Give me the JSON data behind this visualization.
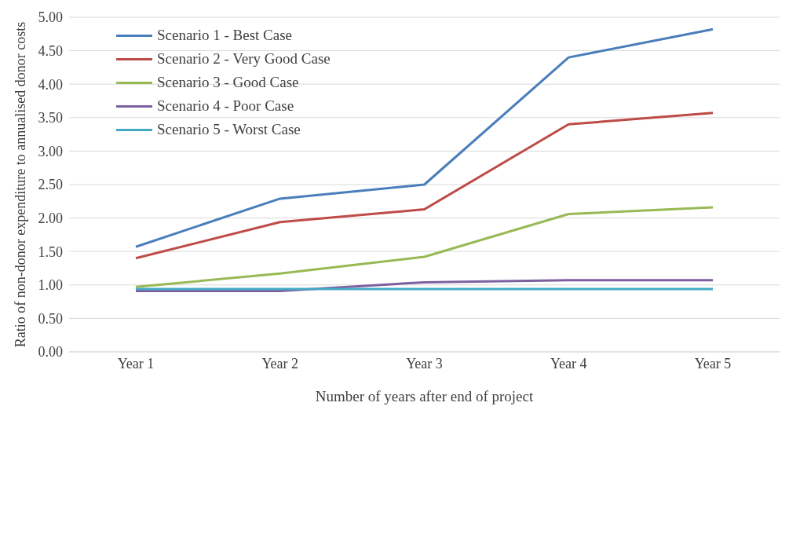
{
  "chart_data": {
    "type": "line",
    "xlabel": "Number of years after end of project",
    "ylabel": "Ratio of non-donor expenditure to annualised donor costs",
    "categories": [
      "Year 1",
      "Year 2",
      "Year 3",
      "Year 4",
      "Year 5"
    ],
    "series": [
      {
        "name": "Scenario 1 - Best Case",
        "color": "#4a7ebb",
        "values": [
          1.57,
          2.29,
          2.5,
          4.4,
          4.82
        ]
      },
      {
        "name": "Scenario 2 - Very Good Case",
        "color": "#be4b48",
        "values": [
          1.4,
          1.94,
          2.13,
          3.4,
          3.57
        ]
      },
      {
        "name": "Scenario 3 - Good Case",
        "color": "#98b954",
        "values": [
          0.97,
          1.17,
          1.42,
          2.06,
          2.16
        ]
      },
      {
        "name": "Scenario 4 - Poor Case",
        "color": "#7d60a0",
        "values": [
          0.91,
          0.91,
          1.04,
          1.07,
          1.07
        ]
      },
      {
        "name": "Scenario 5 - Worst Case",
        "color": "#46aac5",
        "values": [
          0.94,
          0.94,
          0.94,
          0.94,
          0.94
        ]
      }
    ],
    "ylim": [
      0,
      5
    ],
    "yticks": [
      {
        "value": 0,
        "label": "0.00"
      },
      {
        "value": 0.5,
        "label": "0.50"
      },
      {
        "value": 1,
        "label": "1.00"
      },
      {
        "value": 1.5,
        "label": "1.50"
      },
      {
        "value": 2,
        "label": "2.00"
      },
      {
        "value": 2.5,
        "label": "2.50"
      },
      {
        "value": 3,
        "label": "3.00"
      },
      {
        "value": 3.5,
        "label": "3.50"
      },
      {
        "value": 4,
        "label": "4.00"
      },
      {
        "value": 4.5,
        "label": "4.50"
      },
      {
        "value": 5,
        "label": "5.00"
      }
    ],
    "grid": "y",
    "legend": "top left",
    "marker": "none",
    "line_style": "solid"
  }
}
